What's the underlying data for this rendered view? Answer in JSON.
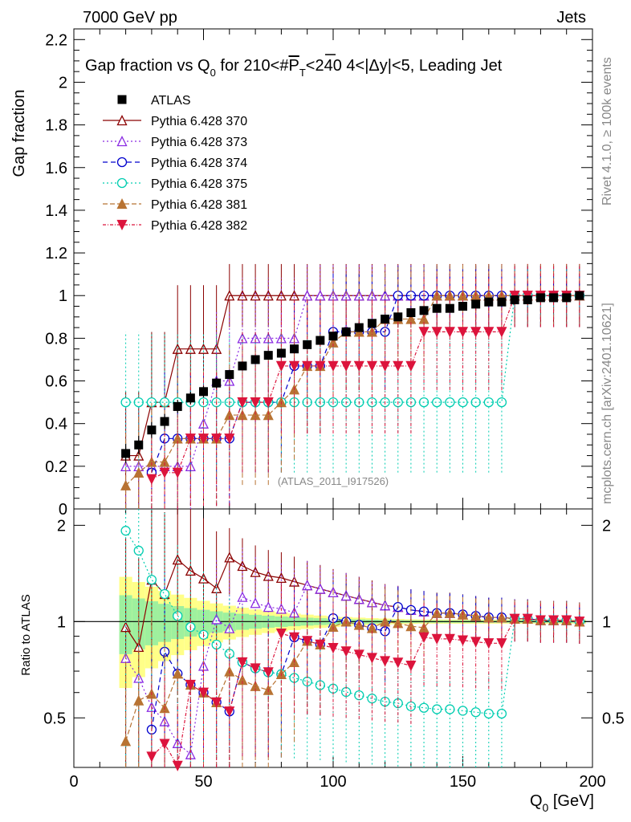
{
  "header": {
    "left": "7000 GeV pp",
    "right": "Jets"
  },
  "side_labels": {
    "top": "Rivet 4.1.0, ≥ 100k events",
    "bottom": "mcplots.cern.ch [arXiv:2401.10621]"
  },
  "analysis_tag": "(ATLAS_2011_I917526)",
  "chart_data": {
    "type": "scatter",
    "title_parts": {
      "a": "Gap fraction vs Q",
      "sub0": "0",
      "b": " for 210<#",
      "pt": "P",
      "subT": "T",
      "c": "<240  4<|Δy|<5, Leading Jet"
    },
    "ylabel": "Gap fraction",
    "ratio_ylabel": "Ratio to ATLAS",
    "xlabel_main": "Q",
    "xlabel_sub": "0",
    "xlabel_unit": " [GeV]",
    "xlim": [
      0,
      200
    ],
    "ylim": [
      0,
      2.25
    ],
    "ratio_ylim": [
      0.35,
      2.25
    ],
    "x": [
      20,
      25,
      30,
      35,
      40,
      45,
      50,
      55,
      60,
      65,
      70,
      75,
      80,
      85,
      90,
      95,
      100,
      105,
      110,
      115,
      120,
      125,
      130,
      135,
      140,
      145,
      150,
      155,
      160,
      165,
      170,
      175,
      180,
      185,
      190,
      195
    ],
    "xticks": [
      0,
      50,
      100,
      150,
      200
    ],
    "yticks": [
      0,
      0.2,
      0.4,
      0.6,
      0.8,
      1,
      1.2,
      1.4,
      1.6,
      1.8,
      2,
      2.2
    ],
    "ytick_labels": [
      "0",
      "0.2",
      "0.4",
      "0.6",
      "0.8",
      "1",
      "1.2",
      "1.4",
      "1.6",
      "1.8",
      "2",
      "2.2"
    ],
    "ratio_yticks": [
      0.5,
      1,
      2
    ],
    "ratio_ytick_labels": [
      "0.5",
      "1",
      "2"
    ],
    "atlas": {
      "name": "ATLAS",
      "color": "#000000",
      "values": [
        0.26,
        0.3,
        0.37,
        0.41,
        0.48,
        0.52,
        0.55,
        0.59,
        0.63,
        0.67,
        0.7,
        0.72,
        0.73,
        0.75,
        0.77,
        0.79,
        0.81,
        0.83,
        0.85,
        0.87,
        0.89,
        0.9,
        0.92,
        0.93,
        0.94,
        0.94,
        0.95,
        0.96,
        0.97,
        0.97,
        0.98,
        0.98,
        0.99,
        0.99,
        0.99,
        1.0
      ]
    },
    "series": [
      {
        "name": "Pythia 6.428 370",
        "color": "#8b0000",
        "marker": "triangle-open",
        "dash": "",
        "values": [
          0.25,
          0.25,
          0.5,
          0.5,
          0.75,
          0.75,
          0.75,
          0.75,
          1,
          1,
          1,
          1,
          1,
          1,
          1,
          1,
          1,
          1,
          1,
          1,
          1,
          1,
          1,
          1,
          1,
          1,
          1,
          1,
          1,
          1,
          1,
          1,
          1,
          1,
          1,
          1
        ]
      },
      {
        "name": "Pythia 6.428 373",
        "color": "#8a2be2",
        "marker": "triangle-open",
        "dash": "2,3",
        "values": [
          0.2,
          0.2,
          0.2,
          0.2,
          0.2,
          0.2,
          0.4,
          0.6,
          0.6,
          0.8,
          0.8,
          0.8,
          0.8,
          0.8,
          1,
          1,
          1,
          1,
          1,
          1,
          1,
          1,
          1,
          1,
          1,
          1,
          1,
          1,
          1,
          1,
          1,
          1,
          1,
          1,
          1,
          1
        ]
      },
      {
        "name": "Pythia 6.428 374",
        "color": "#0000cd",
        "marker": "circle-open",
        "dash": "6,4",
        "values": [
          null,
          null,
          0.17,
          0.33,
          0.33,
          0.33,
          0.33,
          0.33,
          0.33,
          0.5,
          0.5,
          0.5,
          0.5,
          0.67,
          0.67,
          0.67,
          0.83,
          0.83,
          0.83,
          0.83,
          0.83,
          1,
          1,
          1,
          1,
          1,
          1,
          1,
          1,
          1,
          1,
          1,
          1,
          1,
          1,
          1
        ]
      },
      {
        "name": "Pythia 6.428 375",
        "color": "#00cdb0",
        "marker": "circle-open",
        "dash": "2,3",
        "values": [
          0.5,
          0.5,
          0.5,
          0.5,
          0.5,
          0.5,
          0.5,
          0.5,
          0.5,
          0.5,
          0.5,
          0.5,
          0.5,
          0.5,
          0.5,
          0.5,
          0.5,
          0.5,
          0.5,
          0.5,
          0.5,
          0.5,
          0.5,
          0.5,
          0.5,
          0.5,
          0.5,
          0.5,
          0.5,
          0.5,
          1,
          1,
          1,
          1,
          1,
          1
        ]
      },
      {
        "name": "Pythia 6.428 381",
        "color": "#b87333",
        "marker": "triangle-filled",
        "dash": "6,3",
        "values": [
          0.11,
          0.17,
          0.22,
          0.22,
          0.33,
          0.33,
          0.33,
          0.33,
          0.44,
          0.44,
          0.44,
          0.44,
          0.5,
          0.56,
          0.67,
          0.67,
          0.78,
          0.83,
          0.83,
          0.83,
          0.89,
          0.89,
          0.89,
          0.89,
          1,
          1,
          1,
          1,
          1,
          1,
          1,
          1,
          1,
          1,
          1,
          1
        ]
      },
      {
        "name": "Pythia 6.428 382",
        "color": "#dc143c",
        "marker": "triangledown-filled",
        "dash": "4,2,1,2",
        "values": [
          null,
          null,
          0.14,
          0.17,
          0.17,
          0.33,
          0.33,
          0.33,
          0.33,
          0.5,
          0.5,
          0.5,
          0.67,
          0.67,
          0.67,
          0.67,
          0.67,
          0.67,
          0.67,
          0.67,
          0.67,
          0.67,
          0.67,
          0.83,
          0.83,
          0.83,
          0.83,
          0.83,
          0.83,
          0.83,
          1,
          1,
          1,
          1,
          1,
          1
        ]
      }
    ]
  }
}
